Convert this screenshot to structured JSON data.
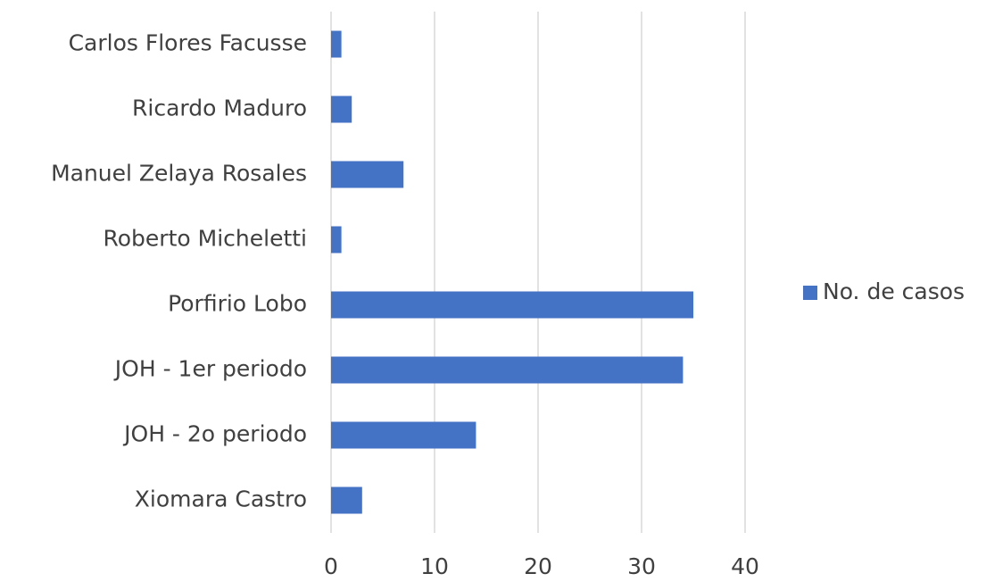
{
  "chart_data": {
    "type": "barh",
    "categories": [
      "Carlos Flores Facusse",
      "Ricardo Maduro",
      "Manuel Zelaya Rosales",
      "Roberto Micheletti",
      "Porfirio Lobo",
      "JOH - 1er periodo",
      "JOH - 2o periodo",
      "Xiomara Castro"
    ],
    "series": [
      {
        "name": "No. de casos",
        "color": "#4472c4",
        "values": [
          1,
          2,
          7,
          1,
          35,
          34,
          14,
          3
        ]
      }
    ],
    "xlim": [
      0,
      40
    ],
    "xticks": [
      0,
      10,
      20,
      30,
      40
    ],
    "grid": true,
    "legend": "right"
  }
}
